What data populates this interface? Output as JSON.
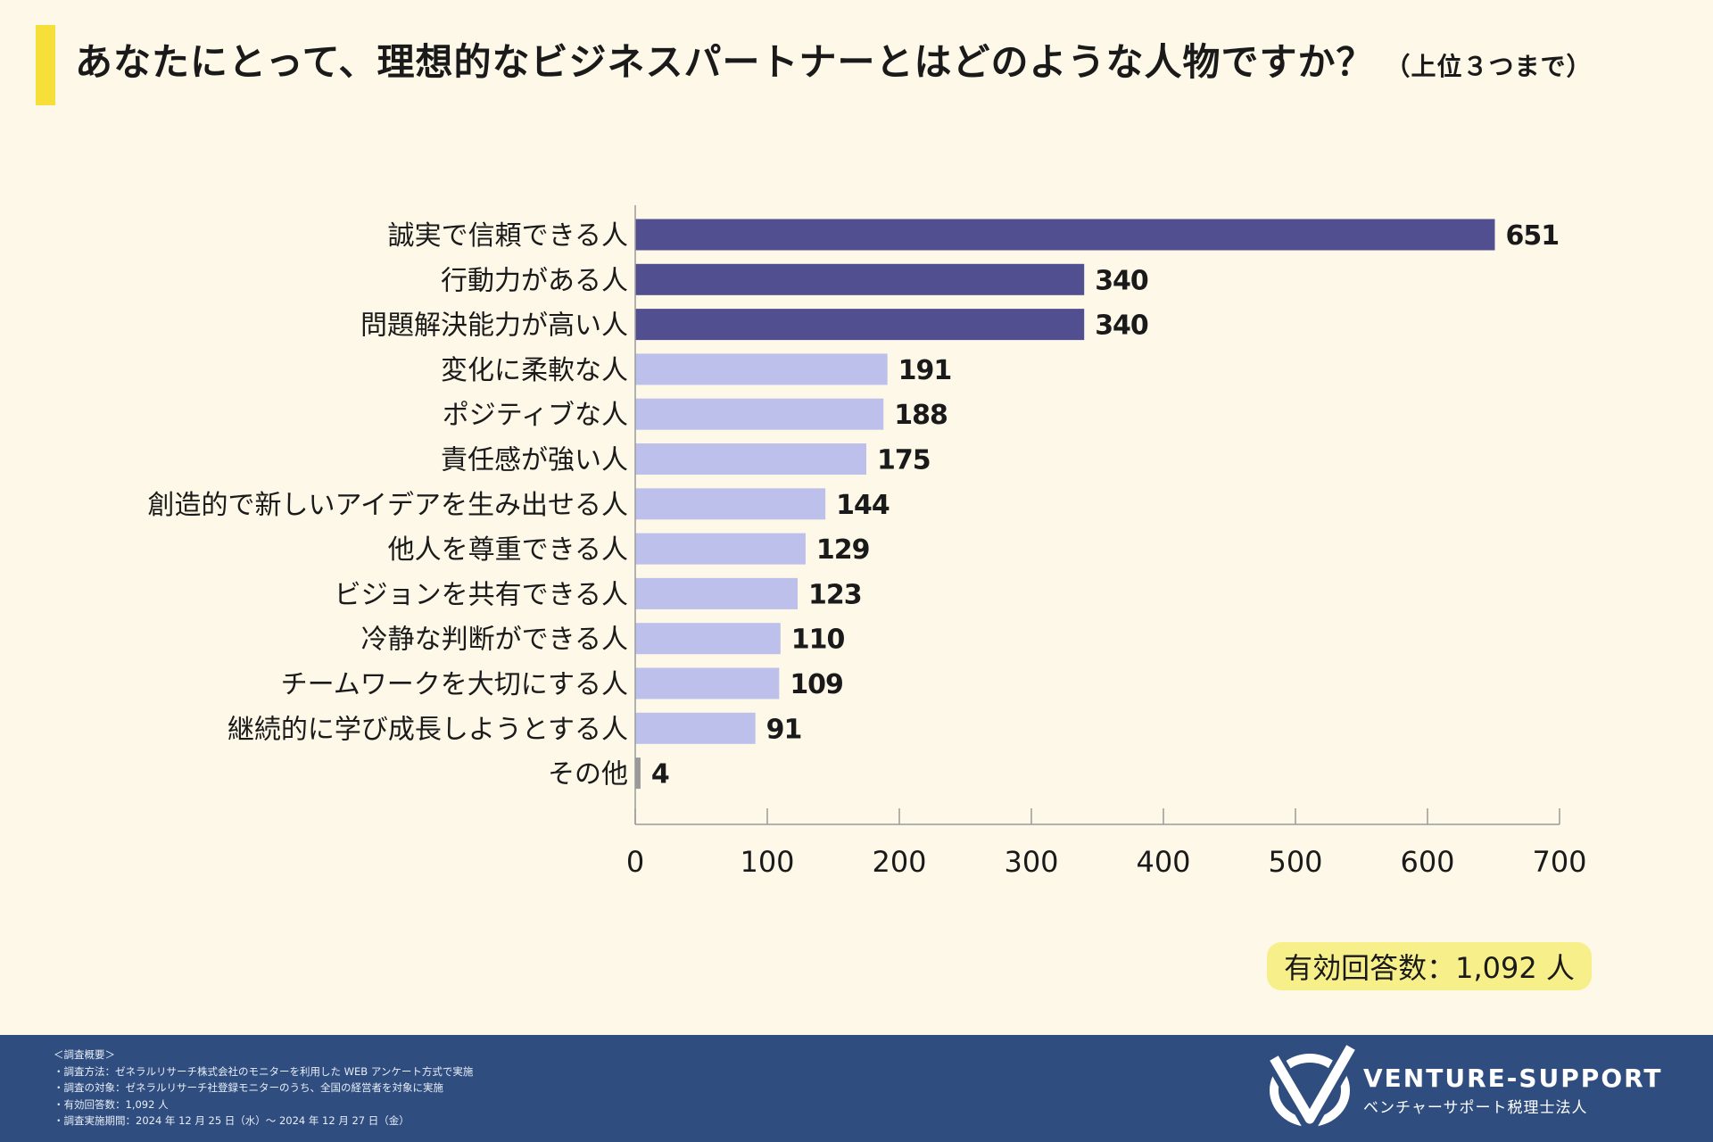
{
  "title": {
    "main": "あなたにとって、理想的なビジネスパートナーとはどのような人物ですか？",
    "sub": "（上位３つまで）"
  },
  "chart_data": {
    "type": "bar",
    "orientation": "horizontal",
    "categories": [
      "誠実で信頼できる人",
      "行動力がある人",
      "問題解決能力が高い人",
      "変化に柔軟な人",
      "ポジティブな人",
      "責任感が強い人",
      "創造的で新しいアイデアを生み出せる人",
      "他人を尊重できる人",
      "ビジョンを共有できる人",
      "冷静な判断ができる人",
      "チームワークを大切にする人",
      "継続的に学び成長しようとする人",
      "その他"
    ],
    "values": [
      651,
      340,
      340,
      191,
      188,
      175,
      144,
      129,
      123,
      110,
      109,
      91,
      4
    ],
    "bar_colors": [
      "#524f91",
      "#524f91",
      "#524f91",
      "#bcc0ea",
      "#bcc0ea",
      "#bcc0ea",
      "#bcc0ea",
      "#bcc0ea",
      "#bcc0ea",
      "#bcc0ea",
      "#bcc0ea",
      "#bcc0ea",
      "#9a9a9a"
    ],
    "xlim": [
      0,
      700
    ],
    "xticks": [
      0,
      100,
      200,
      300,
      400,
      500,
      600,
      700
    ],
    "xlabel": "",
    "ylabel": ""
  },
  "total_label": "有効回答数：1,092 人",
  "footer": {
    "notes": [
      "＜調査概要＞",
      "・調査方法：ゼネラルリサーチ株式会社のモニターを利用した WEB アンケート方式で実施",
      "・調査の対象：ゼネラルリサーチ社登録モニターのうち、全国の経営者を対象に実施",
      "・有効回答数：1,092 人",
      "・調査実施期間：2024 年 12 月 25 日（水）～ 2024 年 12 月 27 日（金）"
    ],
    "brand_en": "VENTURE-SUPPORT",
    "brand_jp": "ベンチャーサポート税理士法人"
  },
  "colors": {
    "background": "#fdf8e8",
    "accent": "#f7df3a",
    "footer": "#2f4d7e",
    "badge": "#f7f08a"
  }
}
